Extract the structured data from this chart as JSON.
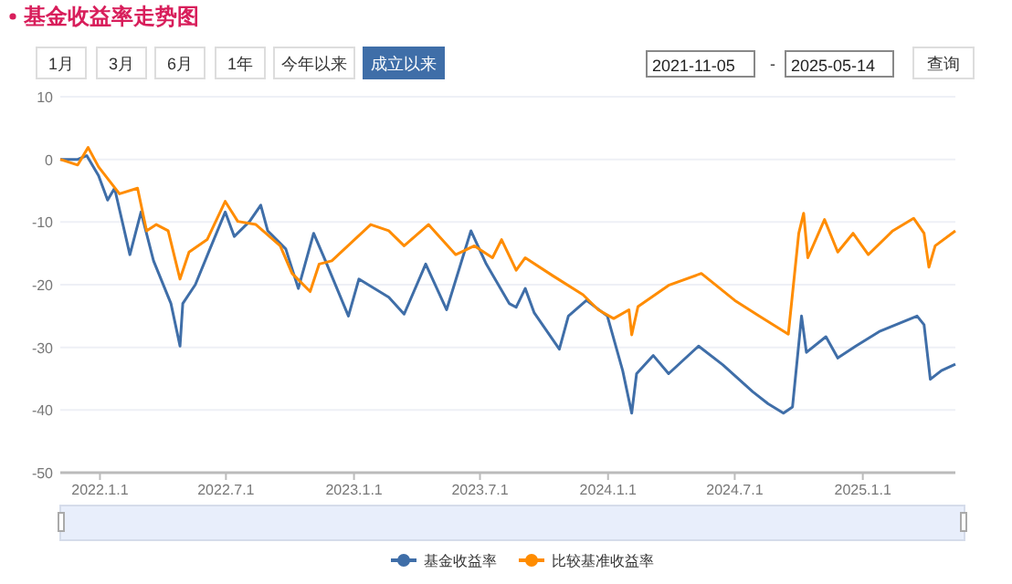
{
  "chart_data": [
    {
      "type": "other",
      "title": "基金收益率走势图",
      "annotations": [
        "1月",
        "3月",
        "6月",
        "1年",
        "今年以来",
        "成立以来",
        "2021-11-05",
        "-",
        "2025-05-14",
        "查询"
      ]
    },
    {
      "type": "line",
      "xlim": [
        "2021-11-05",
        "2025-05-14"
      ],
      "xticks": [
        {
          "value": "2022-01-01",
          "label": "2022.1.1"
        },
        {
          "value": "2022-07-01",
          "label": "2022.7.1"
        },
        {
          "value": "2023-01-01",
          "label": "2023.1.1"
        },
        {
          "value": "2023-07-01",
          "label": "2023.7.1"
        },
        {
          "value": "2024-01-01",
          "label": "2024.1.1"
        },
        {
          "value": "2024-07-01",
          "label": "2024.7.1"
        },
        {
          "value": "2025-01-01",
          "label": "2025.1.1"
        }
      ],
      "ylim": [
        -50,
        10
      ],
      "yticks": [
        -50,
        -40,
        -30,
        -20,
        -10,
        0,
        10
      ],
      "grid": "y",
      "legend": "bottom",
      "marker": "none",
      "line_style": "solid",
      "series": [
        {
          "name": "基金收益率",
          "color": "#3f6ea8",
          "x": [
            "2021-11-05",
            "2021-11-30",
            "2021-12-13",
            "2021-12-30",
            "2022-01-12",
            "2022-01-22",
            "2022-02-13",
            "2022-03-01",
            "2022-03-19",
            "2022-04-13",
            "2022-04-26",
            "2022-04-30",
            "2022-05-18",
            "2022-06-08",
            "2022-06-30",
            "2022-07-13",
            "2022-08-04",
            "2022-08-20",
            "2022-08-30",
            "2022-09-25",
            "2022-10-13",
            "2022-11-04",
            "2022-11-21",
            "2022-12-24",
            "2023-01-08",
            "2023-02-20",
            "2023-03-14",
            "2023-04-14",
            "2023-05-14",
            "2023-06-18",
            "2023-07-10",
            "2023-08-12",
            "2023-08-22",
            "2023-09-04",
            "2023-09-17",
            "2023-10-23",
            "2023-11-05",
            "2023-12-01",
            "2023-12-31",
            "2024-01-22",
            "2024-02-04",
            "2024-02-11",
            "2024-03-06",
            "2024-03-28",
            "2024-05-10",
            "2024-06-14",
            "2024-07-27",
            "2024-08-18",
            "2024-09-09",
            "2024-09-22",
            "2024-10-05",
            "2024-10-12",
            "2024-11-09",
            "2024-11-26",
            "2024-12-22",
            "2025-01-26",
            "2025-03-20",
            "2025-03-30",
            "2025-04-08",
            "2025-04-24",
            "2025-05-14"
          ],
          "values": [
            0,
            0,
            0.6,
            -2.6,
            -6.5,
            -4.6,
            -15.2,
            -8.4,
            -16.2,
            -23,
            -29.8,
            -23,
            -20,
            -14.3,
            -8.4,
            -12.3,
            -9.9,
            -7.3,
            -11.4,
            -14.3,
            -20.6,
            -11.8,
            -16.2,
            -25,
            -19.1,
            -22,
            -24.7,
            -16.7,
            -24,
            -11.4,
            -16.7,
            -23,
            -23.6,
            -20.6,
            -24.5,
            -30.3,
            -25,
            -22.5,
            -25,
            -33.7,
            -40.5,
            -34.2,
            -31.3,
            -34.2,
            -29.8,
            -32.8,
            -37.1,
            -39,
            -40.5,
            -39.5,
            -25,
            -30.8,
            -28.3,
            -31.7,
            -29.8,
            -27.4,
            -25,
            -26.4,
            -35.1,
            -33.7,
            -32.7
          ]
        },
        {
          "name": "比较基准收益率",
          "color": "#ff8c00",
          "x": [
            "2021-11-05",
            "2021-11-30",
            "2021-12-15",
            "2021-12-30",
            "2022-01-29",
            "2022-02-24",
            "2022-03-09",
            "2022-03-23",
            "2022-04-09",
            "2022-04-26",
            "2022-05-09",
            "2022-06-04",
            "2022-06-30",
            "2022-07-18",
            "2022-08-13",
            "2022-09-17",
            "2022-10-04",
            "2022-10-30",
            "2022-11-12",
            "2022-11-30",
            "2023-01-25",
            "2023-02-20",
            "2023-03-14",
            "2023-04-18",
            "2023-05-27",
            "2023-06-23",
            "2023-07-19",
            "2023-08-01",
            "2023-08-22",
            "2023-09-04",
            "2023-10-14",
            "2023-11-26",
            "2023-12-18",
            "2024-01-09",
            "2024-01-31",
            "2024-02-04",
            "2024-02-13",
            "2024-03-28",
            "2024-05-14",
            "2024-07-01",
            "2024-08-05",
            "2024-09-16",
            "2024-10-01",
            "2024-10-08",
            "2024-10-14",
            "2024-11-07",
            "2024-11-26",
            "2024-12-18",
            "2025-01-09",
            "2025-02-13",
            "2025-03-15",
            "2025-03-30",
            "2025-04-06",
            "2025-04-15",
            "2025-05-14"
          ],
          "values": [
            0,
            -0.9,
            1.9,
            -1.2,
            -5.5,
            -4.6,
            -11.4,
            -10.4,
            -11.4,
            -19.1,
            -14.8,
            -12.8,
            -6.7,
            -9.9,
            -10.4,
            -13.8,
            -18.2,
            -21.1,
            -16.7,
            -16.2,
            -10.4,
            -11.4,
            -13.8,
            -10.4,
            -15.2,
            -13.8,
            -15.7,
            -12.8,
            -17.7,
            -15.7,
            -18.6,
            -21.6,
            -24,
            -25.4,
            -24,
            -28,
            -23.5,
            -20.1,
            -18.2,
            -22.5,
            -25,
            -27.9,
            -11.8,
            -8.6,
            -15.7,
            -9.6,
            -14.8,
            -11.8,
            -15.2,
            -11.4,
            -9.4,
            -11.8,
            -17.2,
            -13.8,
            -11.4
          ]
        }
      ]
    }
  ]
}
